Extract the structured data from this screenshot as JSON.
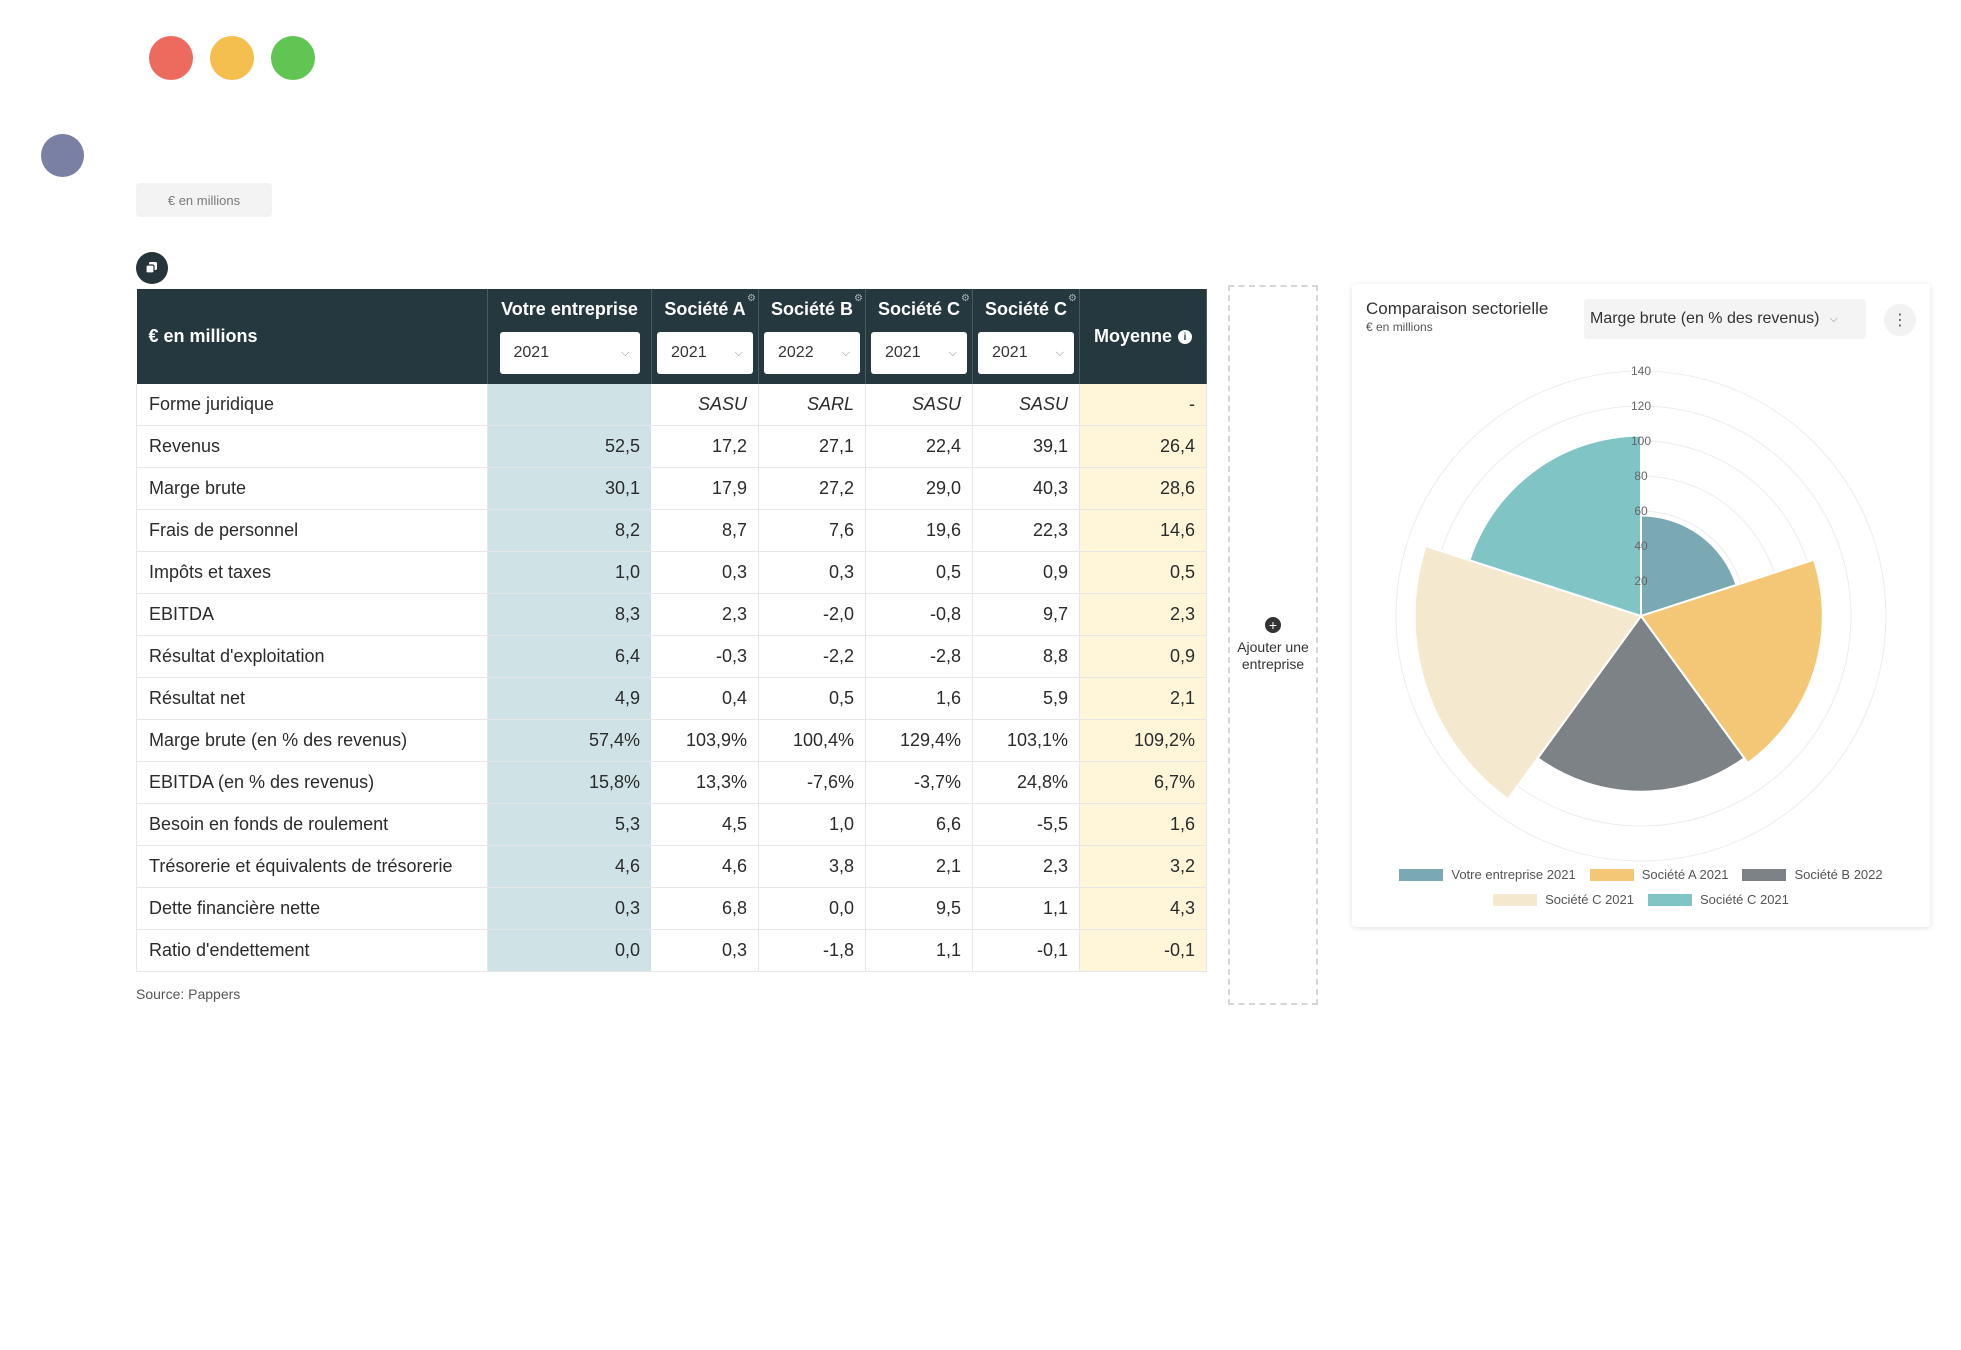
{
  "unit_chip": "€ en millions",
  "table": {
    "corner": "€ en millions",
    "columns": [
      {
        "name": "Votre entreprise",
        "year": "2021"
      },
      {
        "name": "Société A",
        "year": "2021"
      },
      {
        "name": "Société B",
        "year": "2022"
      },
      {
        "name": "Société C",
        "year": "2021"
      },
      {
        "name": "Société C",
        "year": "2021"
      }
    ],
    "average_label": "Moyenne",
    "rows": [
      {
        "label": "Forme juridique",
        "values": [
          "",
          "SASU",
          "SARL",
          "SASU",
          "SASU"
        ],
        "avg": "-"
      },
      {
        "label": "Revenus",
        "values": [
          "52,5",
          "17,2",
          "27,1",
          "22,4",
          "39,1"
        ],
        "avg": "26,4"
      },
      {
        "label": "Marge brute",
        "values": [
          "30,1",
          "17,9",
          "27,2",
          "29,0",
          "40,3"
        ],
        "avg": "28,6"
      },
      {
        "label": "Frais de personnel",
        "values": [
          "8,2",
          "8,7",
          "7,6",
          "19,6",
          "22,3"
        ],
        "avg": "14,6"
      },
      {
        "label": "Impôts et taxes",
        "values": [
          "1,0",
          "0,3",
          "0,3",
          "0,5",
          "0,9"
        ],
        "avg": "0,5"
      },
      {
        "label": "EBITDA",
        "values": [
          "8,3",
          "2,3",
          "-2,0",
          "-0,8",
          "9,7"
        ],
        "avg": "2,3"
      },
      {
        "label": "Résultat d'exploitation",
        "values": [
          "6,4",
          "-0,3",
          "-2,2",
          "-2,8",
          "8,8"
        ],
        "avg": "0,9"
      },
      {
        "label": "Résultat net",
        "values": [
          "4,9",
          "0,4",
          "0,5",
          "1,6",
          "5,9"
        ],
        "avg": "2,1"
      },
      {
        "label": "Marge brute (en % des revenus)",
        "values": [
          "57,4%",
          "103,9%",
          "100,4%",
          "129,4%",
          "103,1%"
        ],
        "avg": "109,2%"
      },
      {
        "label": "EBITDA (en % des revenus)",
        "values": [
          "15,8%",
          "13,3%",
          "-7,6%",
          "-3,7%",
          "24,8%"
        ],
        "avg": "6,7%"
      },
      {
        "label": "Besoin en fonds de roulement",
        "values": [
          "5,3",
          "4,5",
          "1,0",
          "6,6",
          "-5,5"
        ],
        "avg": "1,6"
      },
      {
        "label": "Trésorerie et équivalents de trésorerie",
        "values": [
          "4,6",
          "4,6",
          "3,8",
          "2,1",
          "2,3"
        ],
        "avg": "3,2"
      },
      {
        "label": "Dette financière nette",
        "values": [
          "0,3",
          "6,8",
          "0,0",
          "9,5",
          "1,1"
        ],
        "avg": "4,3"
      },
      {
        "label": "Ratio d'endettement",
        "values": [
          "0,0",
          "0,3",
          "-1,8",
          "1,1",
          "-0,1"
        ],
        "avg": "-0,1"
      }
    ]
  },
  "source": "Source: Pappers",
  "add_company": "Ajouter une entreprise",
  "chart_card": {
    "title": "Comparaison sectorielle",
    "subtitle": "€ en millions",
    "metric": "Marge brute (en % des revenus)"
  },
  "chart_data": {
    "type": "polar-area",
    "series": [
      {
        "name": "Votre entreprise 2021",
        "value": 57.4,
        "color": "#7aa9b4"
      },
      {
        "name": "Société A 2021",
        "value": 103.9,
        "color": "#f3c775"
      },
      {
        "name": "Société B 2022",
        "value": 100.4,
        "color": "#7d8287"
      },
      {
        "name": "Société C 2021",
        "value": 129.4,
        "color": "#f4e8cf"
      },
      {
        "name": "Société C 2021",
        "value": 103.1,
        "color": "#80c4c6"
      }
    ],
    "r_ticks": [
      20,
      40,
      60,
      80,
      100,
      120,
      140
    ],
    "r_max": 140
  },
  "colors": {
    "header": "#26383f",
    "own_col": "#cfe2e6",
    "avg_col": "#fff6d9"
  }
}
